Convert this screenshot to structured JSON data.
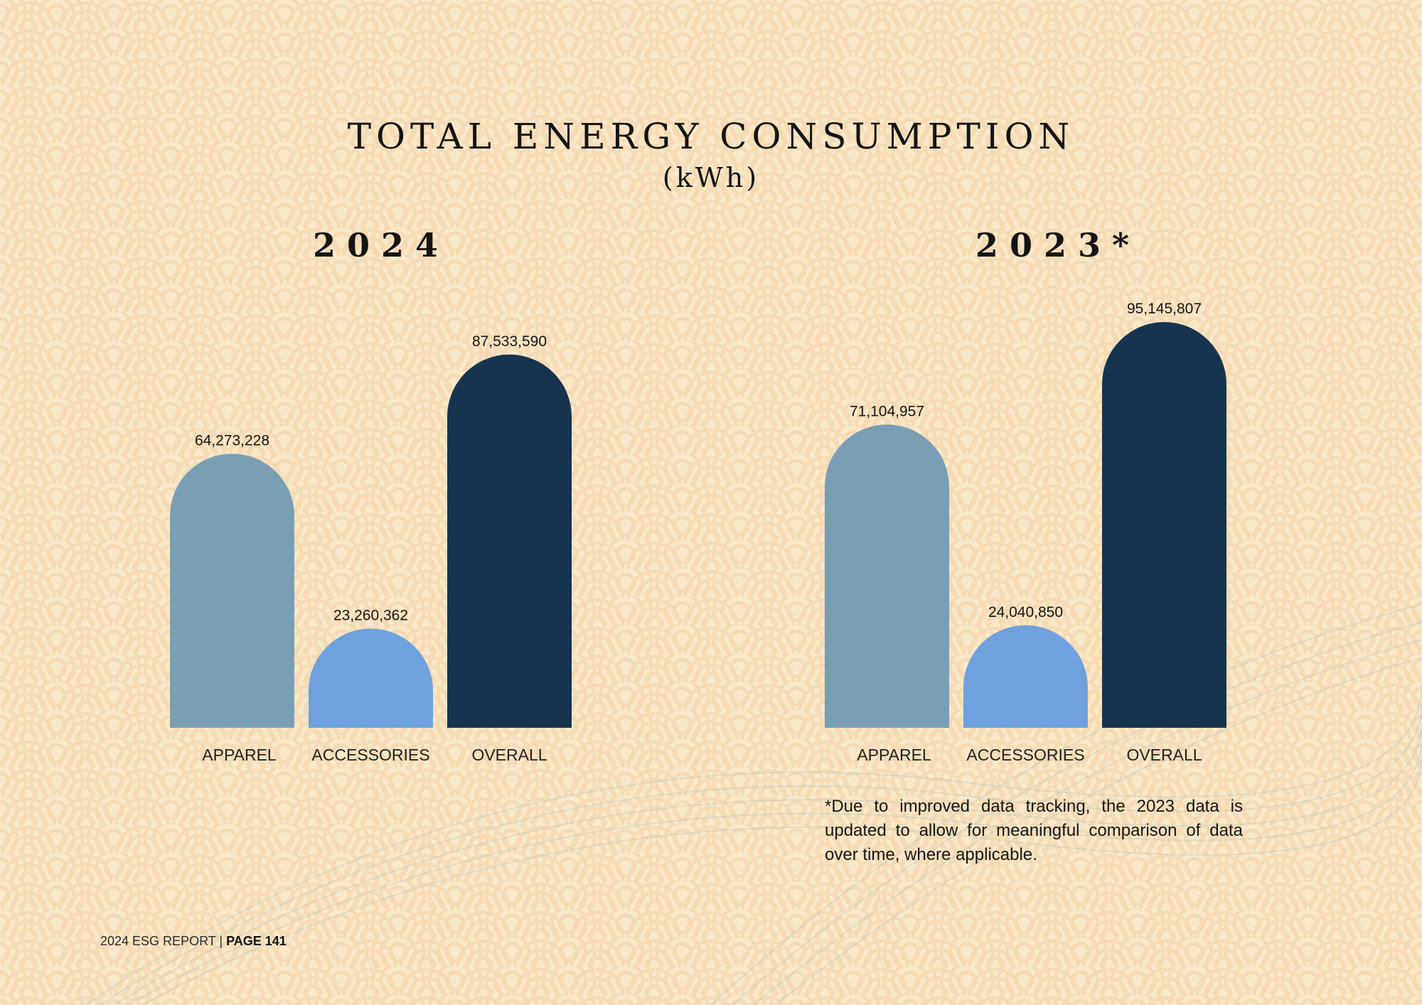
{
  "header": {
    "title": "TOTAL ENERGY CONSUMPTION",
    "subtitle": "(kWh)"
  },
  "colors": {
    "background": "#f9e8c8",
    "pattern": "#f2cfa4",
    "apparel": "#7a9fb5",
    "accessories": "#6ea1dd",
    "overall": "#16344f"
  },
  "chart_data": [
    {
      "type": "bar",
      "title": "2 0 2 4",
      "categories": [
        "APPAREL",
        "ACCESSORIES",
        "OVERALL"
      ],
      "values": [
        64273228,
        23260362,
        87533590
      ],
      "value_labels": [
        "64,273,228",
        "23,260,362",
        "87,533,590"
      ],
      "ylim": [
        0,
        100000000
      ],
      "grid": false
    },
    {
      "type": "bar",
      "title": "2 0 2 3 *",
      "categories": [
        "APPAREL",
        "ACCESSORIES",
        "OVERALL"
      ],
      "values": [
        71104957,
        24040850,
        95145807
      ],
      "value_labels": [
        "71,104,957",
        "24,040,850",
        "95,145,807"
      ],
      "ylim": [
        0,
        100000000
      ],
      "grid": false
    }
  ],
  "footnote": "*Due to improved data tracking, the 2023 data is updated to allow for meaningful comparison of data over time, where applicable.",
  "footer": {
    "report": "2024 ESG REPORT | ",
    "page": "PAGE 141"
  }
}
